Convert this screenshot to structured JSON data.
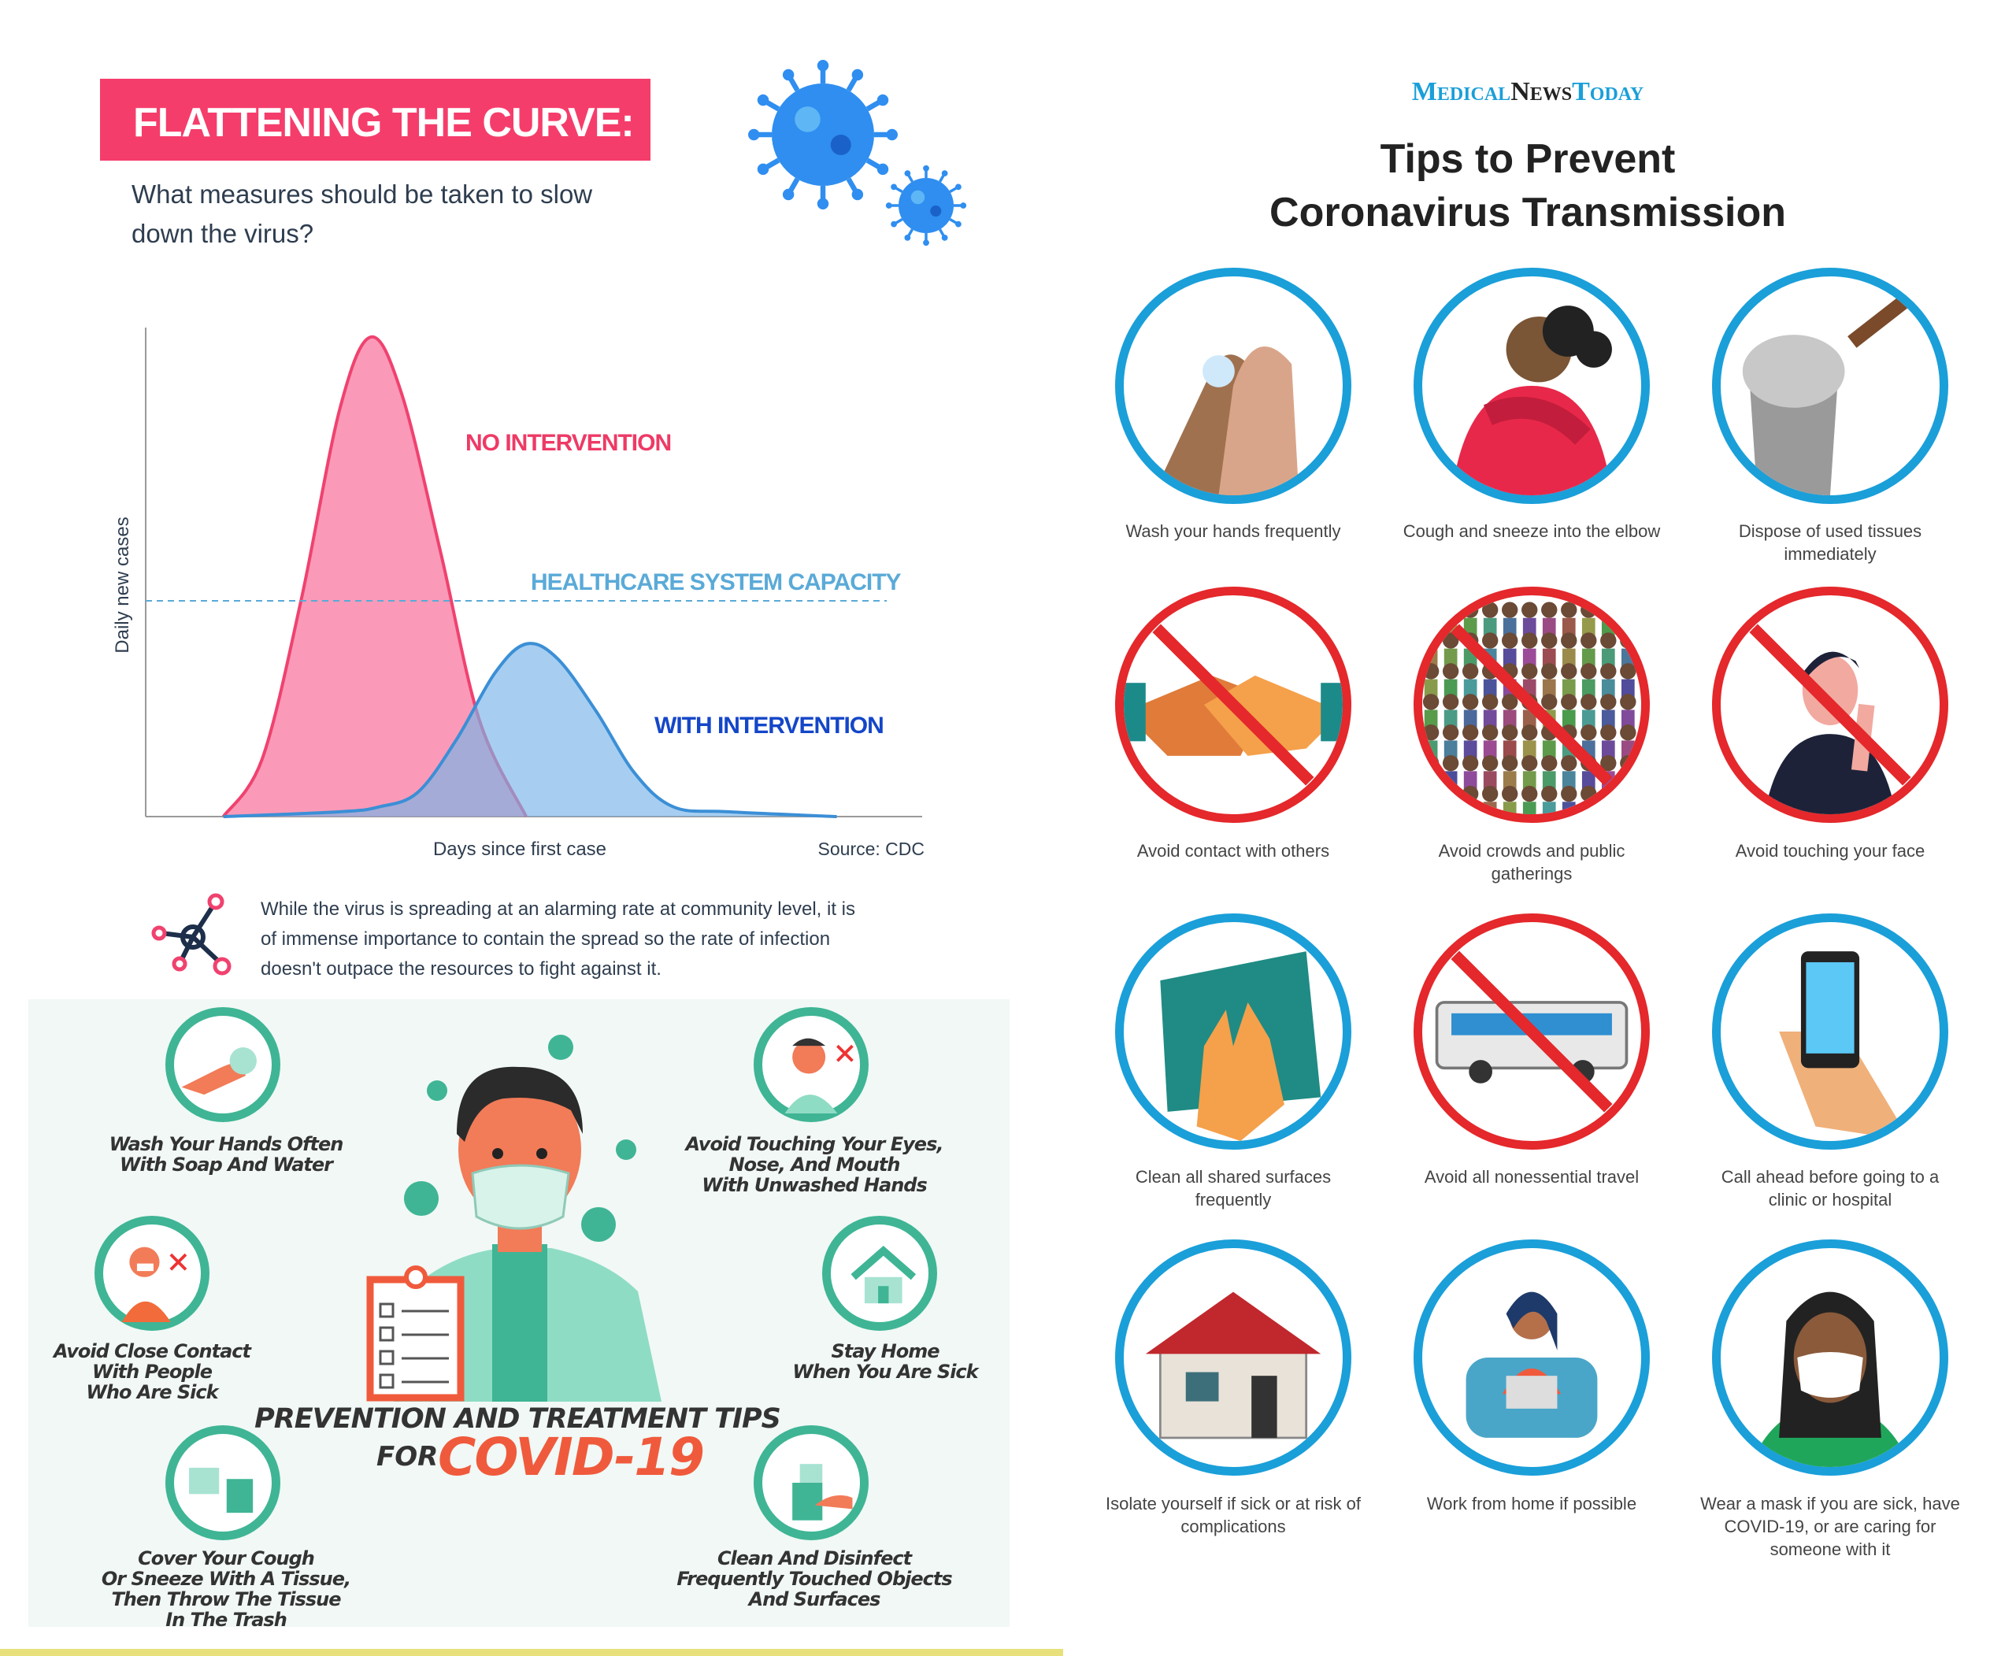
{
  "left": {
    "banner": "FLATTENING THE CURVE:",
    "subtitle": "What measures should be taken to slow down the virus?",
    "paragraph": "While the virus is spreading at an alarming rate at community level, it is of immense importance to contain the spread so the rate of infection doesn't outpace the resources to fight against it.",
    "icons": [
      "virus-icon",
      "molecule-icon"
    ]
  },
  "chart_data": {
    "type": "area",
    "title": "",
    "xlabel": "Days since first case",
    "ylabel": "Daily new cases",
    "source": "Source: CDC",
    "ticks": "none",
    "grid": false,
    "series": [
      {
        "name": "NO INTERVENTION",
        "color": "#f0426f",
        "x": [
          10,
          15,
          20,
          25,
          29,
          33,
          38,
          43,
          49
        ],
        "y": [
          0,
          12,
          45,
          85,
          100,
          88,
          55,
          20,
          0
        ]
      },
      {
        "name": "WITH INTERVENTION",
        "color": "#3b8fd6",
        "x": [
          10,
          25,
          30,
          35,
          40,
          45,
          49,
          53,
          58,
          63,
          68,
          75,
          89
        ],
        "y": [
          0,
          1,
          2,
          5,
          16,
          30,
          36,
          33,
          22,
          9,
          2,
          1,
          0
        ]
      }
    ],
    "reference_line": {
      "label": "HEALTHCARE SYSTEM CAPACITY",
      "y": 45,
      "color": "#5aaad8",
      "style": "dashed"
    }
  },
  "prevention": {
    "title": "PREVENTION AND TREATMENT TIPS",
    "for": "FOR",
    "covid": "COVID-19",
    "accent": "#f05a3c",
    "tips": [
      {
        "text": "Wash Your Hands Often\nWith Soap And Water",
        "icon": "hand-soap-icon"
      },
      {
        "text": "Avoid Touching Your Eyes,\nNose, And Mouth\nWith Unwashed Hands",
        "icon": "face-touch-icon"
      },
      {
        "text": "Avoid Close Contact\nWith People\nWho Are Sick",
        "icon": "sick-person-icon"
      },
      {
        "text": "Stay Home\nWhen You Are Sick",
        "icon": "house-icon"
      },
      {
        "text": "Cover Your Cough\nOr Sneeze With A Tissue,\nThen Throw The Tissue\nIn The Trash",
        "icon": "tissue-trash-icon"
      },
      {
        "text": "Clean And Disinfect\nFrequently Touched Objects\nAnd Surfaces",
        "icon": "spray-bottle-icon"
      }
    ]
  },
  "right": {
    "logo": {
      "medical": "Medical",
      "news": "News",
      "today": "Today"
    },
    "title_line1": "Tips to Prevent",
    "title_line2": "Coronavirus Transmission",
    "colors": {
      "do": "#1a9fd9",
      "dont": "#e4282b"
    },
    "tips": [
      {
        "label": "Wash your hands frequently",
        "icon": "hand-washing-icon",
        "type": "do"
      },
      {
        "label": "Cough and sneeze into the elbow",
        "icon": "elbow-sneeze-icon",
        "type": "do"
      },
      {
        "label": "Dispose of used tissues immediately",
        "icon": "trash-can-icon",
        "type": "do"
      },
      {
        "label": "Avoid contact with others",
        "icon": "handshake-icon",
        "type": "dont"
      },
      {
        "label": "Avoid crowds and public gatherings",
        "icon": "crowd-icon",
        "type": "dont"
      },
      {
        "label": "Avoid touching your face",
        "icon": "face-touch-icon",
        "type": "dont"
      },
      {
        "label": "Clean all shared surfaces frequently",
        "icon": "cleaning-cloth-icon",
        "type": "do"
      },
      {
        "label": "Avoid all nonessential travel",
        "icon": "bus-icon",
        "type": "dont"
      },
      {
        "label": "Call ahead before going to a clinic or hospital",
        "icon": "phone-icon",
        "type": "do"
      },
      {
        "label": "Isolate yourself if sick or at risk of complications",
        "icon": "house-icon",
        "type": "do"
      },
      {
        "label": "Work from home if possible",
        "icon": "laptop-person-icon",
        "type": "do"
      },
      {
        "label": "Wear a mask if you are sick, have COVID-19, or are caring for someone with it",
        "icon": "face-mask-icon",
        "type": "do"
      }
    ]
  }
}
